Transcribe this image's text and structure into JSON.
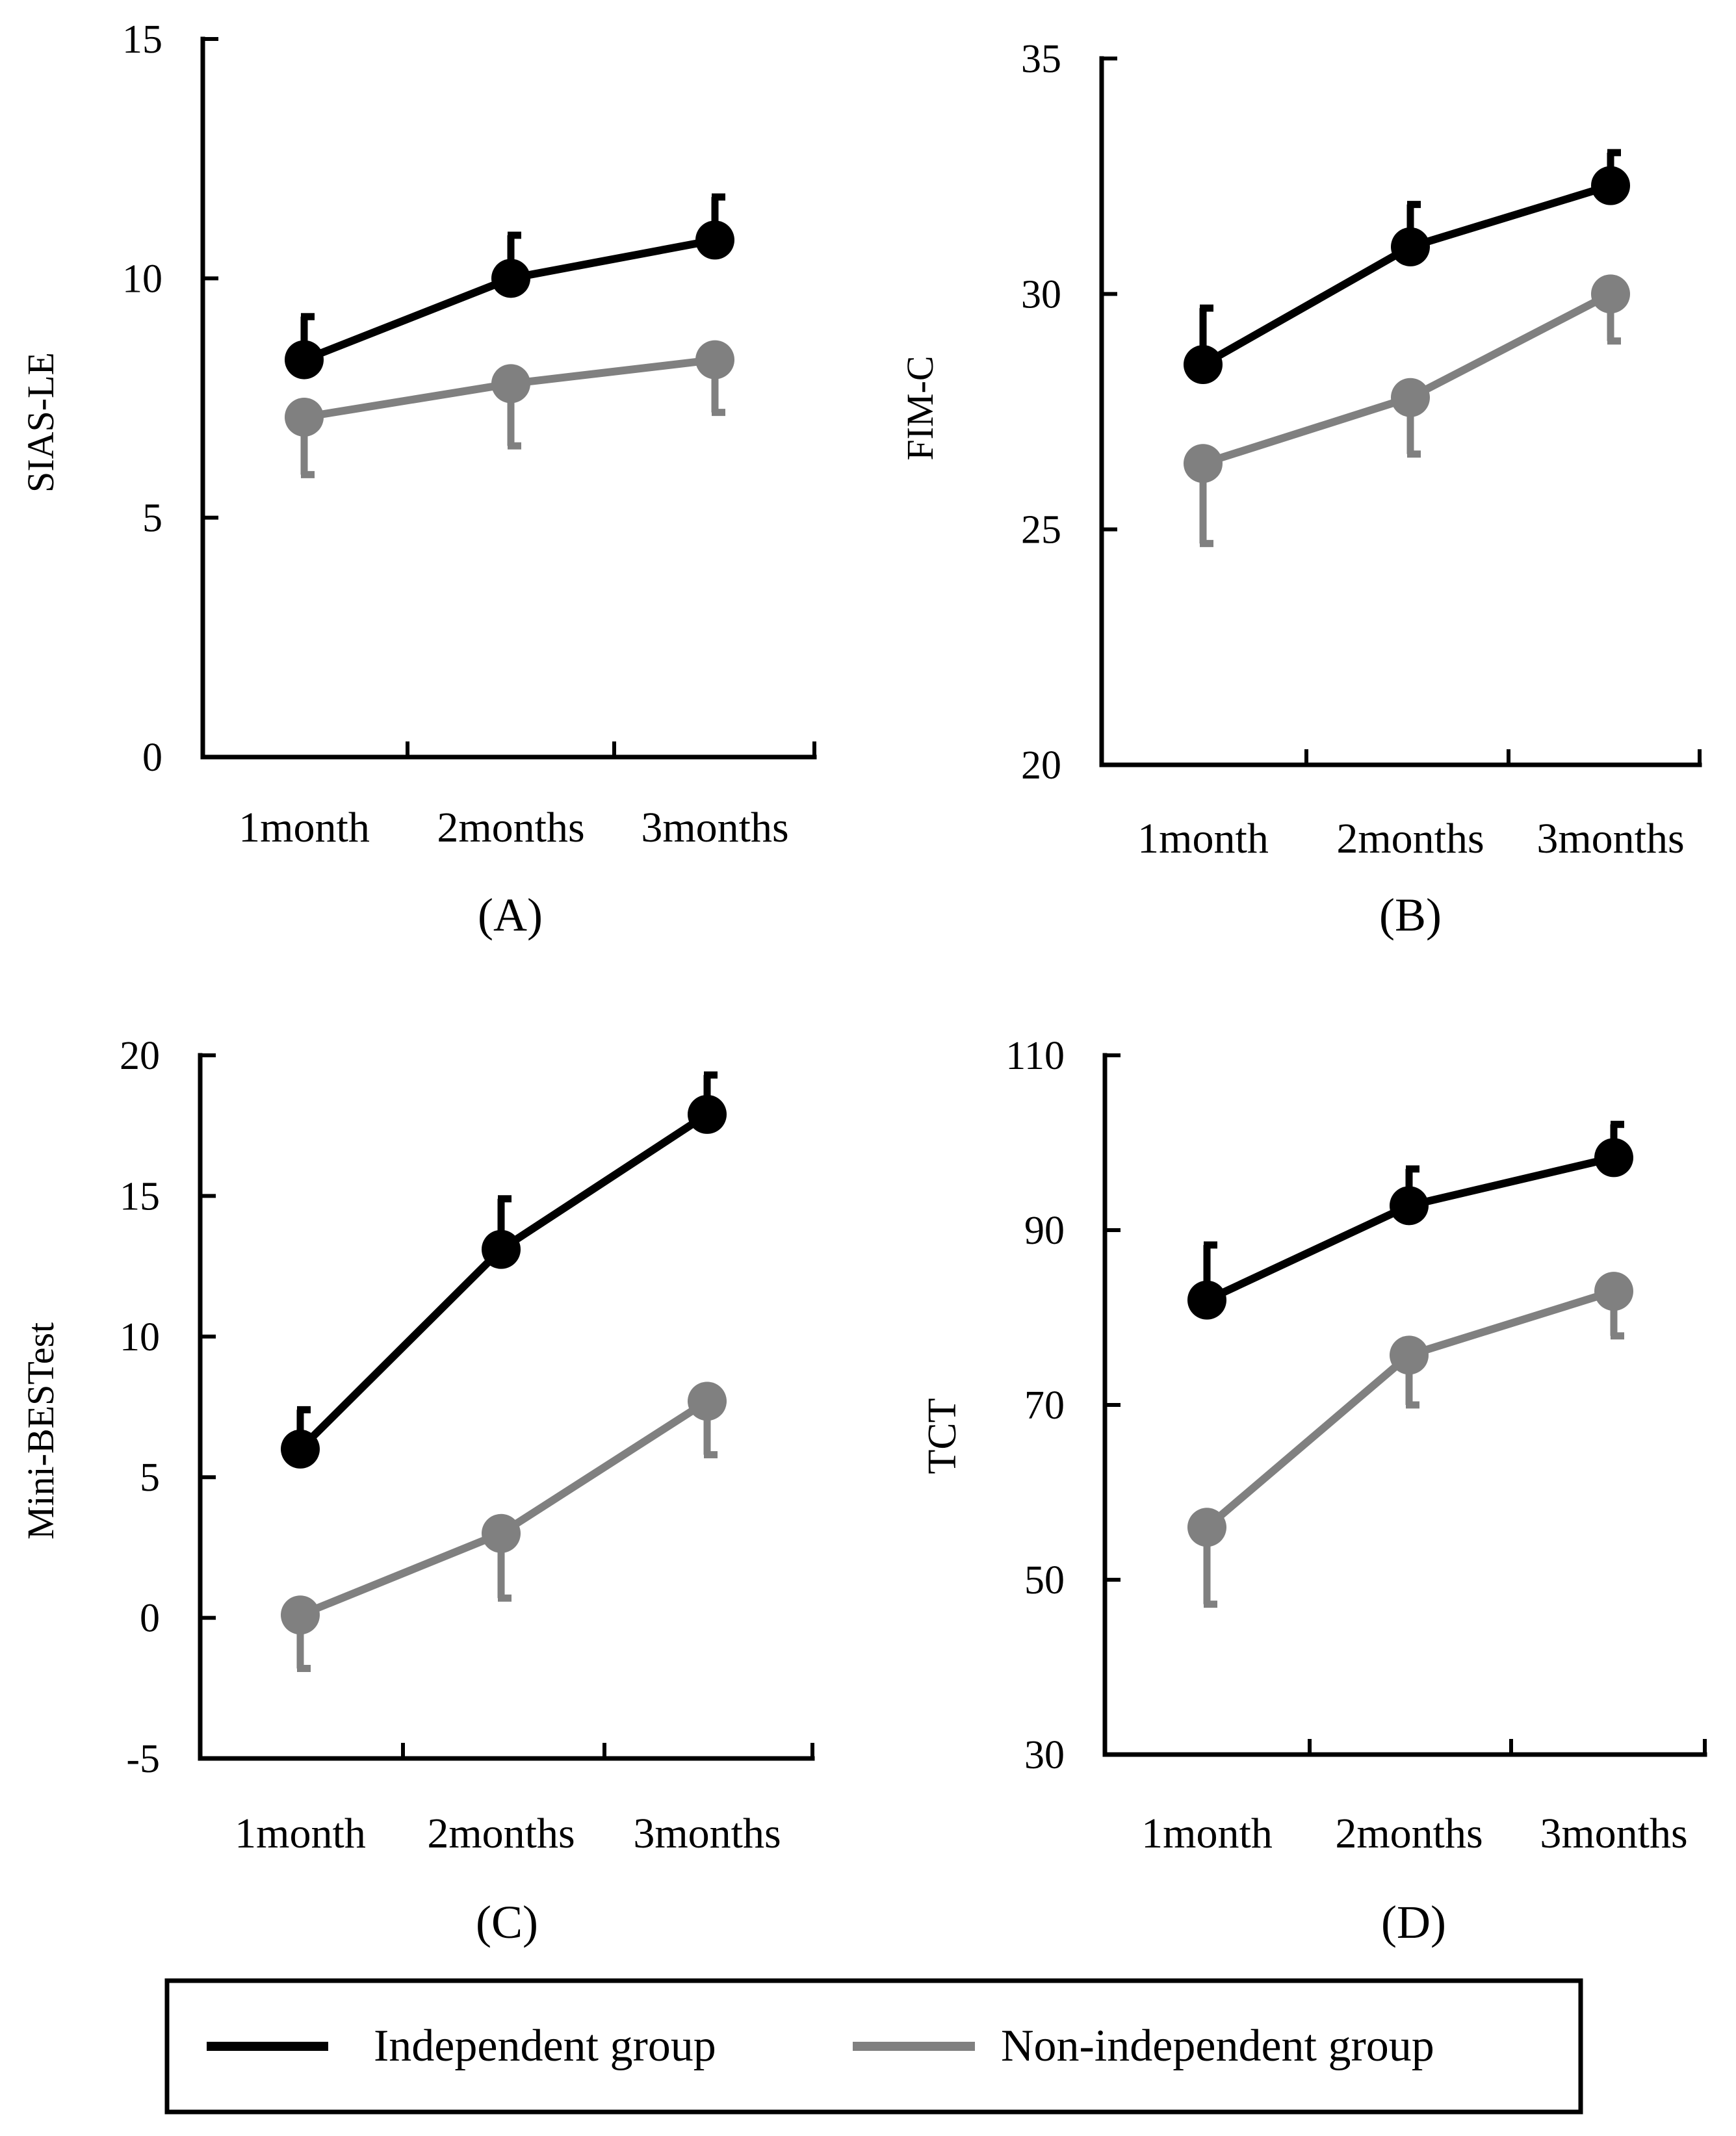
{
  "colors": {
    "independent": "#000000",
    "non_independent": "#808080",
    "axis": "#000000"
  },
  "legend": {
    "independent": "Independent group",
    "non_independent": "Non-independent group"
  },
  "chart_data": [
    {
      "type": "line",
      "panel_label": "(A)",
      "ylabel": "SIAS-LE",
      "categories": [
        "1month",
        "2months",
        "3months"
      ],
      "ylim": [
        0,
        15
      ],
      "yticks": [
        0,
        5,
        10,
        15
      ],
      "series": [
        {
          "name": "Independent group",
          "key": "independent",
          "values": [
            8.3,
            10.0,
            10.8
          ],
          "errors": [
            0.9,
            0.9,
            0.9
          ]
        },
        {
          "name": "Non-independent group",
          "key": "non_independent",
          "values": [
            7.1,
            7.8,
            8.3
          ],
          "errors": [
            1.2,
            1.3,
            1.1
          ]
        }
      ]
    },
    {
      "type": "line",
      "panel_label": "(B)",
      "ylabel": "FIM-C",
      "categories": [
        "1month",
        "2months",
        "3months"
      ],
      "ylim": [
        20,
        35
      ],
      "yticks": [
        20,
        25,
        30,
        35
      ],
      "series": [
        {
          "name": "Independent group",
          "key": "independent",
          "values": [
            28.5,
            31.0,
            32.3
          ],
          "errors": [
            1.2,
            0.9,
            0.7
          ]
        },
        {
          "name": "Non-independent group",
          "key": "non_independent",
          "values": [
            26.4,
            27.8,
            30.0
          ],
          "errors": [
            1.7,
            1.2,
            1.0
          ]
        }
      ]
    },
    {
      "type": "line",
      "panel_label": "(C)",
      "ylabel": "Mini-BESTest",
      "categories": [
        "1month",
        "2months",
        "3months"
      ],
      "ylim": [
        -5,
        20
      ],
      "yticks": [
        -5,
        0,
        5,
        10,
        15,
        20
      ],
      "series": [
        {
          "name": "Independent group",
          "key": "independent",
          "values": [
            6.0,
            13.1,
            17.9
          ],
          "errors": [
            1.4,
            1.8,
            1.4
          ]
        },
        {
          "name": "Non-independent group",
          "key": "non_independent",
          "values": [
            0.1,
            3.0,
            7.7
          ],
          "errors": [
            1.9,
            2.3,
            1.9
          ]
        }
      ]
    },
    {
      "type": "line",
      "panel_label": "(D)",
      "ylabel": "TCT",
      "categories": [
        "1month",
        "2months",
        "3months"
      ],
      "ylim": [
        30,
        110
      ],
      "yticks": [
        30,
        50,
        70,
        90,
        110
      ],
      "series": [
        {
          "name": "Independent group",
          "key": "independent",
          "values": [
            82.0,
            92.8,
            98.3
          ],
          "errors": [
            6.3,
            4.2,
            3.8
          ]
        },
        {
          "name": "Non-independent group",
          "key": "non_independent",
          "values": [
            56.0,
            75.7,
            83.0
          ],
          "errors": [
            8.8,
            5.7,
            5.1
          ]
        }
      ]
    }
  ]
}
